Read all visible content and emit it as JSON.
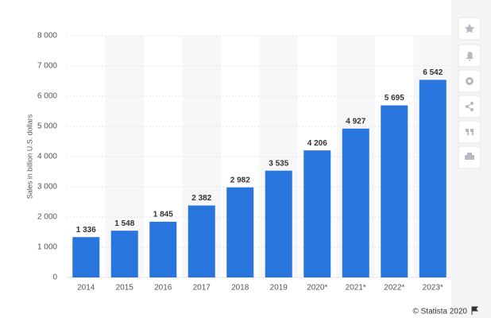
{
  "chart_data": {
    "type": "bar",
    "y_label": "Sales in billion U.S. dollars",
    "categories": [
      "2014",
      "2015",
      "2016",
      "2017",
      "2018",
      "2019",
      "2020*",
      "2021*",
      "2022*",
      "2023*"
    ],
    "values": [
      1336,
      1548,
      1845,
      2382,
      2982,
      3535,
      4206,
      4927,
      5695,
      6542
    ],
    "value_labels": [
      "1 336",
      "1 548",
      "1 845",
      "2 382",
      "2 982",
      "3 535",
      "4 206",
      "4 927",
      "5 695",
      "6 542"
    ],
    "color": "#2876dd",
    "ylim": [
      0,
      8000
    ],
    "yticks": [
      0,
      {
        "value": 1000,
        "label": "1 000"
      },
      {
        "value": 2000,
        "label": "2 000"
      },
      {
        "value": 3000,
        "label": "3 000"
      },
      {
        "value": 4000,
        "label": "4 000"
      },
      {
        "value": 5000,
        "label": "5 000"
      },
      {
        "value": 6000,
        "label": "6 000"
      },
      {
        "value": 7000,
        "label": "7 000"
      },
      {
        "value": 8000,
        "label": "8 000"
      }
    ],
    "grid": true,
    "credit": "© Statista 2020"
  }
}
